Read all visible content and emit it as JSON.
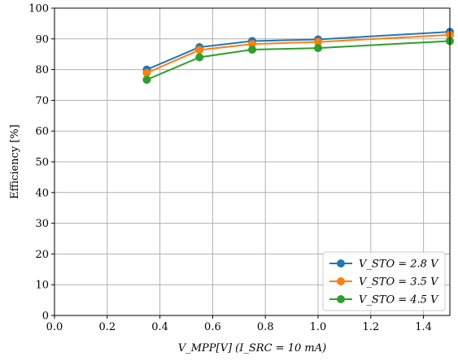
{
  "chart_data": {
    "type": "line",
    "xlabel": "V_MPP[V] (I_SRC = 10 mA)",
    "ylabel": "Efficiency [%]",
    "xlim": [
      0.0,
      1.5
    ],
    "ylim": [
      0,
      100
    ],
    "xticks": [
      "0.0",
      "0.2",
      "0.4",
      "0.6",
      "0.8",
      "1.0",
      "1.2",
      "1.4"
    ],
    "yticks": [
      "0",
      "10",
      "20",
      "30",
      "40",
      "50",
      "60",
      "70",
      "80",
      "90",
      "100"
    ],
    "grid": true,
    "legend_position": "bottom-right",
    "x": [
      0.35,
      0.55,
      0.75,
      1.0,
      1.5
    ],
    "series": [
      {
        "name": "V_STO = 2.8 V",
        "color": "#1f77b4",
        "values": [
          80.0,
          87.3,
          89.3,
          89.8,
          92.3
        ]
      },
      {
        "name": "V_STO = 3.5 V",
        "color": "#ff7f0e",
        "values": [
          78.9,
          86.4,
          88.3,
          89.0,
          91.3
        ]
      },
      {
        "name": "V_STO = 4.5 V",
        "color": "#2ca02c",
        "values": [
          76.7,
          84.0,
          86.5,
          87.0,
          89.3
        ]
      }
    ]
  }
}
